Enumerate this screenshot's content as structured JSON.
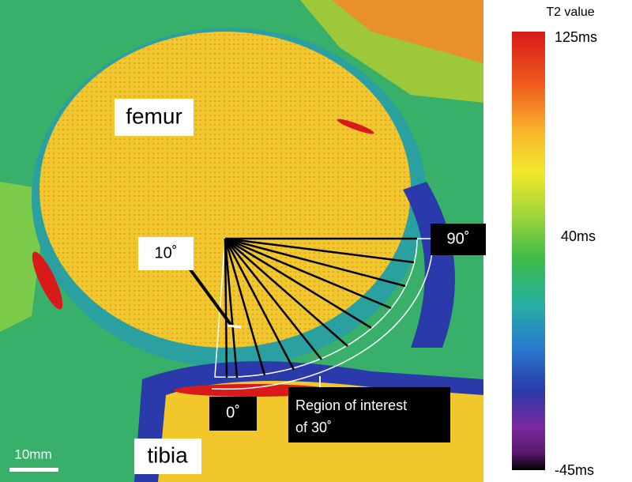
{
  "image": {
    "labels": {
      "femur": "femur",
      "tibia": "tibia",
      "angle_10": "10˚",
      "angle_90": "90˚",
      "angle_0": "0˚",
      "roi_line1": "Region of interest",
      "roi_line2": "of 30˚",
      "scale_bar": "10mm"
    }
  },
  "colorbar": {
    "title": "T2 value",
    "top": "125ms",
    "middle": "40ms",
    "bottom": "-45ms"
  }
}
